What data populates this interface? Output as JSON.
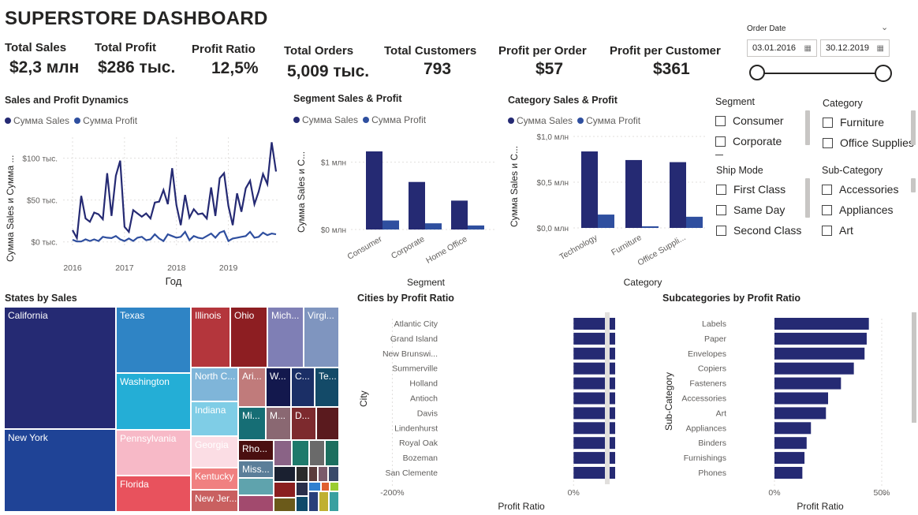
{
  "title": "SUPERSTORE DASHBOARD",
  "colors": {
    "sales": "#252a73",
    "profit": "#2f4f9f",
    "bar": "#252a73"
  },
  "kpis": [
    {
      "label": "Total Sales",
      "value": "$2,3 млн"
    },
    {
      "label": "Total Profit",
      "value": "$286 тыс."
    },
    {
      "label": "Profit Ratio",
      "value": "12,5%"
    },
    {
      "label": "Total Orders",
      "value": "5,009 тыс."
    },
    {
      "label": "Total Customers",
      "value": "793"
    },
    {
      "label": "Profit per Order",
      "value": "$57"
    },
    {
      "label": "Profit per Customer",
      "value": "$361"
    }
  ],
  "date_filter": {
    "label": "Order Date",
    "from": "03.01.2016",
    "to": "30.12.2019",
    "range_fraction": [
      0,
      1
    ]
  },
  "legend": {
    "sales": "Сумма Sales",
    "profit": "Сумма Profit"
  },
  "dynamics": {
    "title": "Sales and Profit Dynamics",
    "ylabel": "Сумма Sales и Сумма ...",
    "xlabel": "Год",
    "yticks": [
      "$0 тыс.",
      "$50 тыс.",
      "$100 тыс."
    ],
    "xticks": [
      "2016",
      "2017",
      "2018",
      "2019"
    ]
  },
  "segment_chart": {
    "title": "Segment Sales & Profit",
    "ylabel": "Сумма Sales и С...",
    "xlabel": "Segment",
    "yticks": [
      "$0 млн",
      "$1 млн"
    ]
  },
  "category_chart": {
    "title": "Category Sales & Profit",
    "ylabel": "Сумма Sales и С...",
    "xlabel": "Category",
    "yticks": [
      "$0,0 млн",
      "$0,5 млн",
      "$1,0 млн"
    ]
  },
  "slicers": {
    "segment": {
      "label": "Segment",
      "items": [
        "Consumer",
        "Corporate"
      ]
    },
    "category": {
      "label": "Category",
      "items": [
        "Furniture",
        "Office Supplies"
      ]
    },
    "ship_mode": {
      "label": "Ship Mode",
      "items": [
        "First Class",
        "Same Day",
        "Second Class"
      ]
    },
    "sub_category": {
      "label": "Sub-Category",
      "items": [
        "Accessories",
        "Appliances",
        "Art"
      ]
    }
  },
  "states": {
    "title": "States by Sales",
    "labels": [
      "California",
      "New York",
      "Texas",
      "Washington",
      "Pennsylvania",
      "Florida",
      "Illinois",
      "Ohio",
      "Mich...",
      "Virgi...",
      "North C...",
      "Ari...",
      "W...",
      "C...",
      "Te...",
      "Indiana",
      "Mi...",
      "M...",
      "D...",
      "Georgia",
      "Rho...",
      "Kentucky",
      "Miss...",
      "New Jer..."
    ]
  },
  "cities": {
    "title": "Cities by Profit Ratio",
    "ylabel": "City",
    "xlabel": "Profit Ratio",
    "xticks": [
      "-200%",
      "0%"
    ]
  },
  "subcats": {
    "title": "Subcategories by Profit Ratio",
    "ylabel": "Sub-Category",
    "xlabel": "Profit Ratio",
    "xticks": [
      "0%",
      "50%"
    ]
  },
  "chart_data": [
    {
      "type": "line",
      "title": "Sales and Profit Dynamics",
      "xlabel": "Год",
      "ylabel": "Сумма Sales и Сумма ...",
      "ylim": [
        -5000,
        125000
      ],
      "x_range": [
        "2016-01",
        "2019-12"
      ],
      "series": [
        {
          "name": "Сумма Sales",
          "values": [
            14000,
            4500,
            55000,
            28000,
            24000,
            35000,
            33000,
            27000,
            82000,
            31000,
            79000,
            97000,
            18000,
            12000,
            38000,
            34000,
            30000,
            34000,
            28000,
            47000,
            48000,
            62000,
            45000,
            88000,
            44000,
            20000,
            56000,
            29000,
            39000,
            33000,
            34000,
            28000,
            65000,
            31000,
            76000,
            82000,
            43000,
            20000,
            58000,
            36000,
            64000,
            73000,
            45000,
            60000,
            81000,
            69000,
            119000,
            84000
          ]
        },
        {
          "name": "Сумма Profit",
          "values": [
            2500,
            500,
            500,
            3000,
            1000,
            3000,
            1000,
            6000,
            5000,
            4500,
            7000,
            3000,
            1000,
            4000,
            1000,
            5000,
            6000,
            2000,
            3000,
            9000,
            4000,
            1000,
            9000,
            7000,
            5000,
            6000,
            12000,
            2000,
            7000,
            5000,
            4000,
            7000,
            10000,
            5000,
            11000,
            13000,
            1000,
            4000,
            5000,
            6000,
            7000,
            12000,
            5000,
            6000,
            11000,
            8000,
            10000,
            9000
          ]
        }
      ]
    },
    {
      "type": "bar",
      "title": "Segment Sales & Profit",
      "xlabel": "Segment",
      "ylabel": "Сумма Sales и С...",
      "ylim": [
        0,
        1300000
      ],
      "categories": [
        "Consumer",
        "Corporate",
        "Home Office"
      ],
      "series": [
        {
          "name": "Сумма Sales",
          "values": [
            1160000,
            706000,
            429000
          ]
        },
        {
          "name": "Сумма Profit",
          "values": [
            134000,
            92000,
            60000
          ]
        }
      ]
    },
    {
      "type": "bar",
      "title": "Category Sales & Profit",
      "xlabel": "Category",
      "ylabel": "Сумма Sales и С...",
      "ylim": [
        0,
        1000000
      ],
      "categories": [
        "Technology",
        "Furniture",
        "Office Suppli..."
      ],
      "series": [
        {
          "name": "Сумма Sales",
          "values": [
            836000,
            742000,
            719000
          ]
        },
        {
          "name": "Сумма Profit",
          "values": [
            146000,
            18000,
            122000
          ]
        }
      ]
    },
    {
      "type": "bar",
      "orientation": "horizontal",
      "title": "Cities by Profit Ratio",
      "xlabel": "Profit Ratio",
      "ylabel": "City",
      "xlim": [
        -2.5,
        0.25
      ],
      "categories": [
        "Atlantic City",
        "Grand Island",
        "New Brunswi...",
        "Summerville",
        "Holland",
        "Antioch",
        "Davis",
        "Lindenhurst",
        "Royal Oak",
        "Bozeman",
        "San Clemente"
      ],
      "values": [
        0.5,
        0.5,
        0.5,
        0.5,
        0.5,
        0.5,
        0.5,
        0.5,
        0.5,
        0.5,
        0.5
      ]
    },
    {
      "type": "bar",
      "orientation": "horizontal",
      "title": "Subcategories by Profit Ratio",
      "xlabel": "Profit Ratio",
      "ylabel": "Sub-Category",
      "xlim": [
        0,
        0.5
      ],
      "categories": [
        "Labels",
        "Paper",
        "Envelopes",
        "Copiers",
        "Fasteners",
        "Accessories",
        "Art",
        "Appliances",
        "Binders",
        "Furnishings",
        "Phones"
      ],
      "values": [
        0.44,
        0.43,
        0.42,
        0.37,
        0.31,
        0.25,
        0.24,
        0.17,
        0.15,
        0.14,
        0.13
      ]
    },
    {
      "type": "treemap",
      "title": "States by Sales",
      "categories": [
        "California",
        "New York",
        "Texas",
        "Washington",
        "Pennsylvania",
        "Florida",
        "Illinois",
        "Ohio"
      ],
      "values": [
        457688,
        310876,
        170188,
        138641,
        116512,
        89474,
        80166,
        78258
      ]
    }
  ]
}
